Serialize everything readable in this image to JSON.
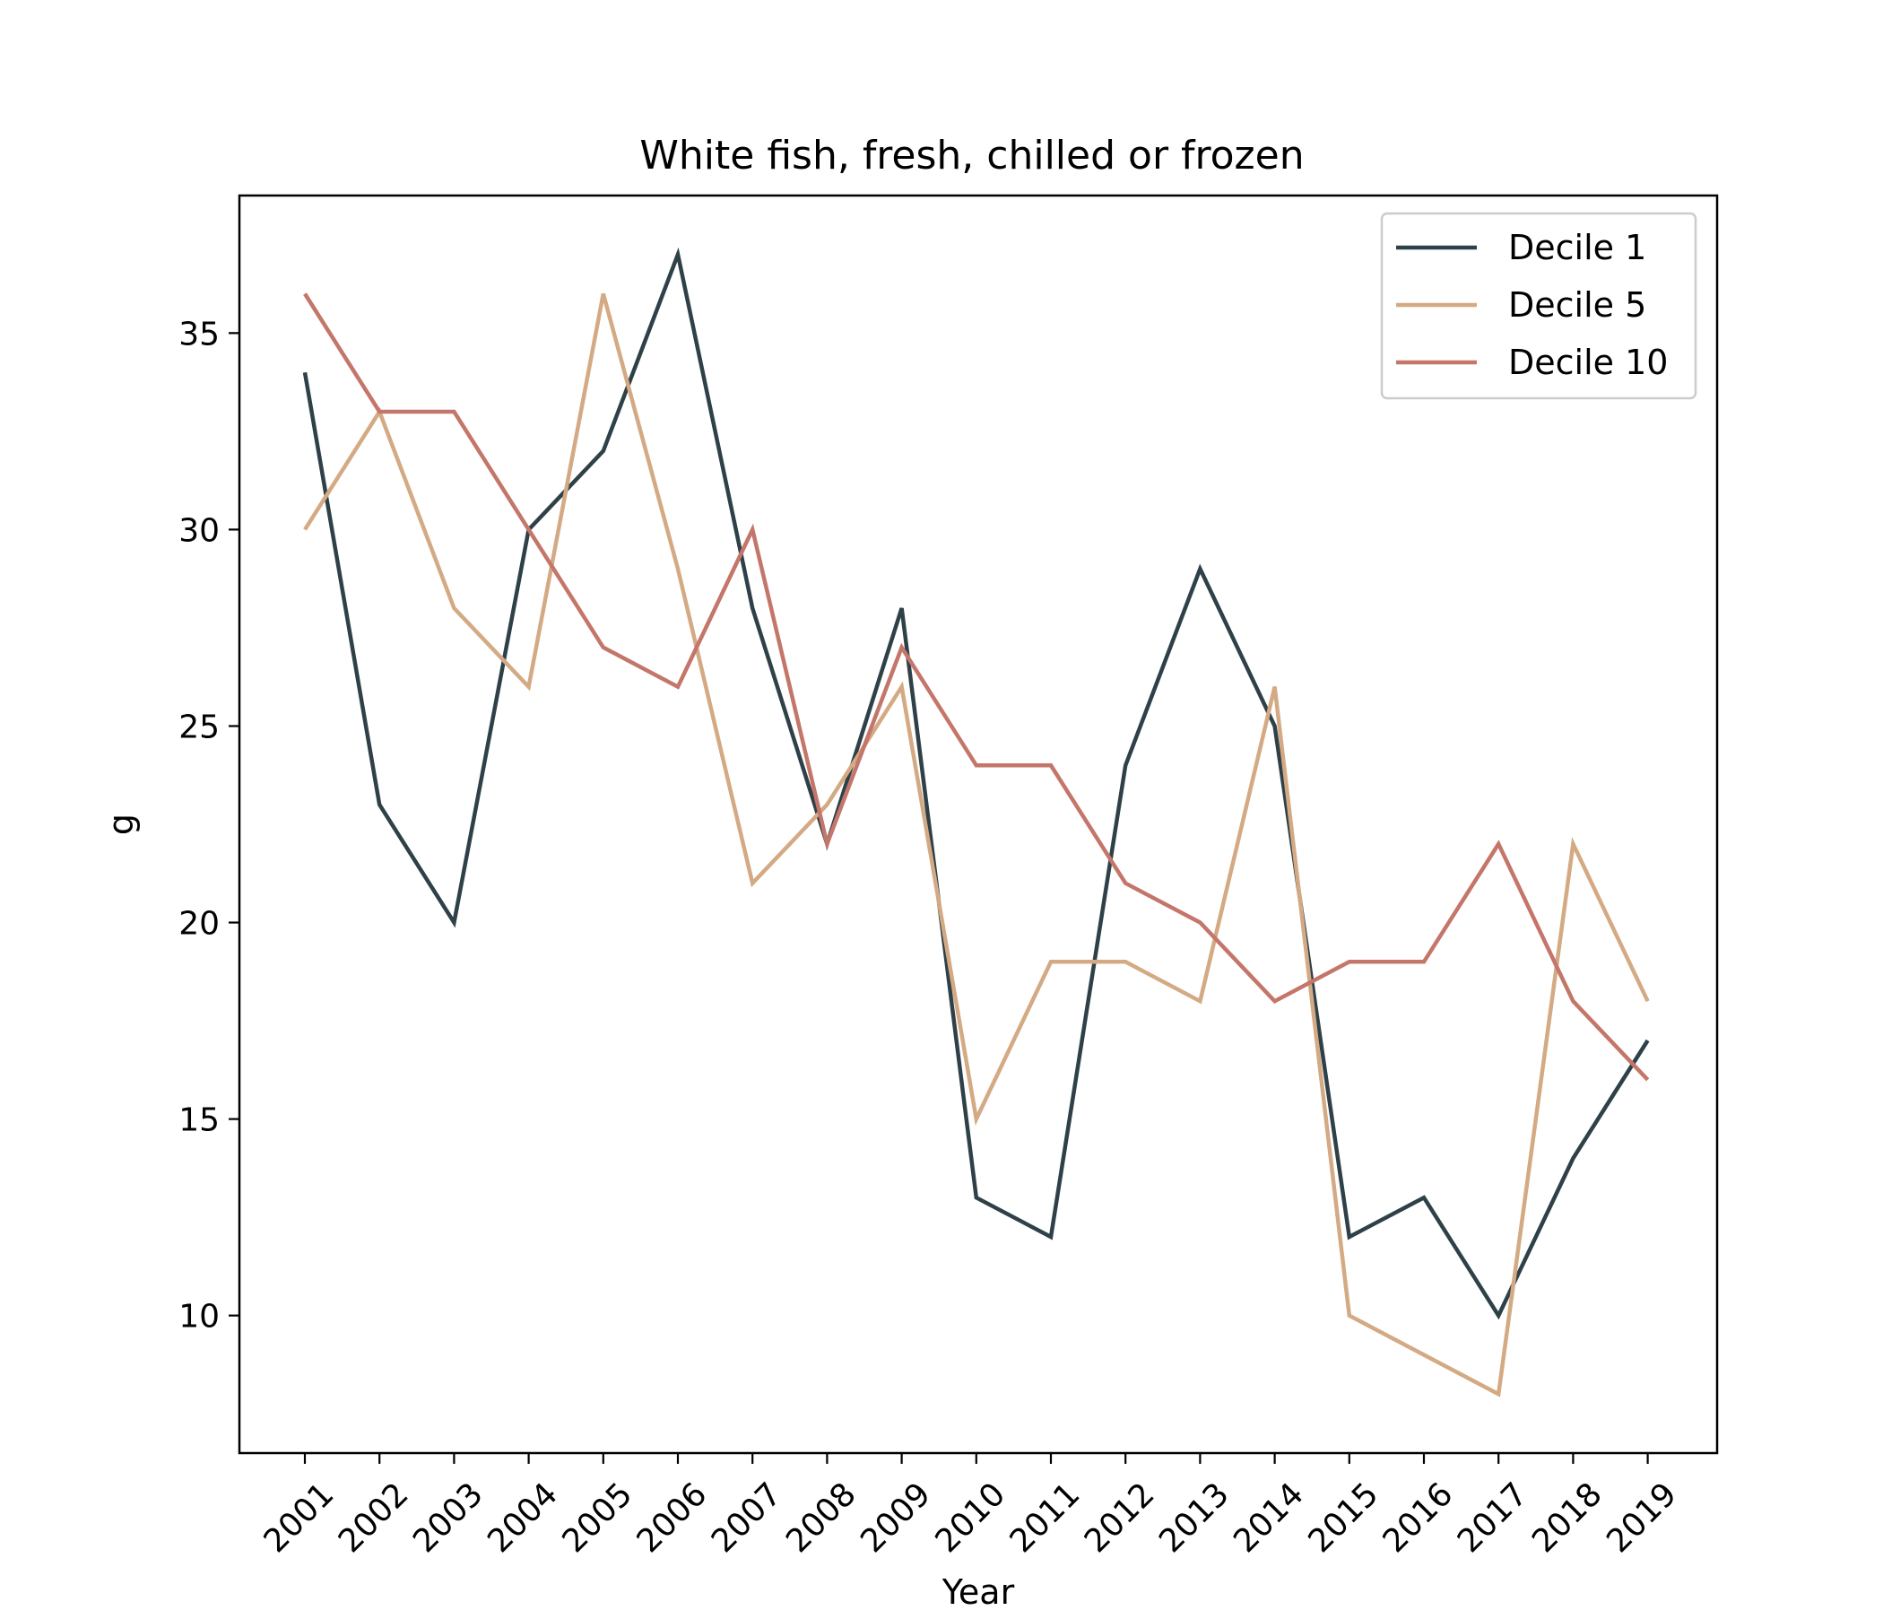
{
  "chart_data": {
    "type": "line",
    "title": "White fish, fresh, chilled or frozen",
    "xlabel": "Year",
    "ylabel": "g",
    "categories": [
      "2001",
      "2002",
      "2003",
      "2004",
      "2005",
      "2006",
      "2007",
      "2008",
      "2009",
      "2010",
      "2011",
      "2012",
      "2013",
      "2014",
      "2015",
      "2016",
      "2017",
      "2018",
      "2019"
    ],
    "ylim": [
      6.5,
      38.5
    ],
    "yticks": [
      10,
      15,
      20,
      25,
      30,
      35
    ],
    "grid": false,
    "legend_position": "top-right",
    "series": [
      {
        "name": "Decile 1",
        "color": "#2f4148",
        "values": [
          34,
          23,
          20,
          30,
          32,
          37,
          28,
          22,
          28,
          13,
          12,
          24,
          29,
          25,
          12,
          13,
          10,
          14,
          17
        ]
      },
      {
        "name": "Decile 5",
        "color": "#d4aa84",
        "values": [
          30,
          33,
          28,
          26,
          36,
          29,
          21,
          23,
          26,
          15,
          19,
          19,
          18,
          26,
          10,
          9,
          8,
          22,
          18
        ]
      },
      {
        "name": "Decile 10",
        "color": "#c4766a",
        "values": [
          36,
          33,
          33,
          30,
          27,
          26,
          30,
          22,
          27,
          24,
          24,
          21,
          20,
          18,
          19,
          19,
          22,
          18,
          16
        ]
      }
    ]
  }
}
